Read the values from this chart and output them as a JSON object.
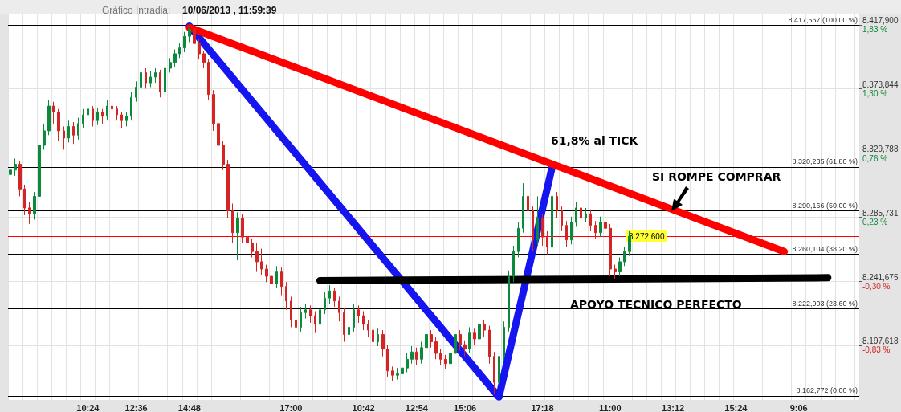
{
  "chart_data": {
    "type": "candlestick",
    "title": "Gráfico Intradia:",
    "subtitle": "10/06/2013 , 11:59:39",
    "categories": [
      null,
      null,
      null,
      null,
      null,
      null,
      null,
      null,
      null,
      null,
      null,
      null,
      null,
      null,
      null,
      null,
      "10:24",
      null,
      null,
      null,
      null,
      null,
      null,
      null,
      null,
      null,
      "12:36",
      null,
      null,
      null,
      null,
      null,
      null,
      null,
      null,
      null,
      null,
      "14:48",
      null,
      null,
      null,
      null,
      null,
      null,
      null,
      null,
      null,
      null,
      null,
      null,
      null,
      null,
      null,
      null,
      null,
      null,
      null,
      null,
      "17:00",
      null,
      null,
      null,
      null,
      null,
      null,
      null,
      null,
      null,
      null,
      null,
      null,
      null,
      null,
      "10:42",
      null,
      null,
      null,
      null,
      null,
      null,
      null,
      null,
      null,
      null,
      "12:54",
      null,
      null,
      null,
      null,
      null,
      null,
      null,
      null,
      null,
      "15:06",
      null,
      null,
      null,
      null,
      null,
      null,
      null,
      null,
      null,
      null,
      null,
      null,
      null,
      null,
      null,
      "17:18",
      null,
      null,
      null,
      null,
      null,
      null,
      null,
      null,
      null,
      null,
      null,
      null,
      null,
      "11:00",
      null,
      null,
      null,
      null,
      null,
      null,
      null,
      null,
      null,
      null,
      null,
      null,
      "13:12",
      null,
      null,
      null,
      null,
      null,
      null,
      null,
      null,
      null,
      null,
      null,
      null,
      "15:24",
      null,
      null,
      null,
      null,
      null,
      null,
      null,
      null,
      null,
      null,
      null,
      null,
      "9:06",
      null,
      null,
      null,
      null,
      null,
      null,
      null,
      null,
      null,
      null,
      null,
      null
    ],
    "series": [
      {
        "ohlc": [
          [
            8315,
            8322,
            8308,
            8318
          ],
          [
            8318,
            8326,
            8314,
            8322
          ],
          [
            8322,
            8324,
            8300,
            8305
          ],
          [
            8305,
            8308,
            8287,
            8292
          ],
          [
            8292,
            8296,
            8281,
            8288
          ],
          [
            8288,
            8303,
            8284,
            8300
          ],
          [
            8300,
            8340,
            8298,
            8335
          ],
          [
            8335,
            8350,
            8332,
            8345
          ],
          [
            8345,
            8366,
            8342,
            8362
          ],
          [
            8362,
            8365,
            8350,
            8358
          ],
          [
            8358,
            8360,
            8338,
            8345
          ],
          [
            8345,
            8348,
            8332,
            8340
          ],
          [
            8340,
            8352,
            8337,
            8348
          ],
          [
            8348,
            8351,
            8336,
            8342
          ],
          [
            8342,
            8354,
            8339,
            8350
          ],
          [
            8350,
            8360,
            8347,
            8356
          ],
          [
            8356,
            8366,
            8353,
            8360
          ],
          [
            8360,
            8362,
            8348,
            8352
          ],
          [
            8352,
            8361,
            8349,
            8358
          ],
          [
            8358,
            8360,
            8350,
            8355
          ],
          [
            8355,
            8366,
            8352,
            8362
          ],
          [
            8362,
            8364,
            8356,
            8360
          ],
          [
            8360,
            8362,
            8352,
            8356
          ],
          [
            8356,
            8358,
            8347,
            8352
          ],
          [
            8352,
            8358,
            8348,
            8355
          ],
          [
            8355,
            8372,
            8352,
            8368
          ],
          [
            8368,
            8379,
            8365,
            8375
          ],
          [
            8375,
            8390,
            8372,
            8385
          ],
          [
            8385,
            8388,
            8374,
            8378
          ],
          [
            8378,
            8386,
            8375,
            8382
          ],
          [
            8382,
            8388,
            8378,
            8385
          ],
          [
            8385,
            8387,
            8368,
            8372
          ],
          [
            8372,
            8391,
            8370,
            8388
          ],
          [
            8388,
            8395,
            8385,
            8392
          ],
          [
            8392,
            8401,
            8389,
            8398
          ],
          [
            8398,
            8405,
            8395,
            8402
          ],
          [
            8402,
            8413,
            8399,
            8410
          ],
          [
            8410,
            8417.5,
            8406,
            8415
          ],
          [
            8415,
            8416,
            8402,
            8405
          ],
          [
            8405,
            8408,
            8394,
            8398
          ],
          [
            8398,
            8400,
            8388,
            8392
          ],
          [
            8392,
            8394,
            8366,
            8370
          ],
          [
            8370,
            8373,
            8345,
            8350
          ],
          [
            8350,
            8353,
            8330,
            8335
          ],
          [
            8335,
            8338,
            8318,
            8322
          ],
          [
            8322,
            8325,
            8285,
            8290
          ],
          [
            8290,
            8295,
            8268,
            8275
          ],
          [
            8275,
            8289,
            8256,
            8285
          ],
          [
            8285,
            8288,
            8268,
            8272
          ],
          [
            8272,
            8282,
            8264,
            8268
          ],
          [
            8268,
            8271,
            8258,
            8262
          ],
          [
            8262,
            8268,
            8248,
            8255
          ],
          [
            8255,
            8264,
            8246,
            8250
          ],
          [
            8250,
            8253,
            8241,
            8245
          ],
          [
            8245,
            8248,
            8235,
            8240
          ],
          [
            8240,
            8252,
            8237,
            8248
          ],
          [
            8248,
            8251,
            8232,
            8238
          ],
          [
            8238,
            8241,
            8222,
            8228
          ],
          [
            8228,
            8231,
            8210,
            8215
          ],
          [
            8215,
            8218,
            8206,
            8210
          ],
          [
            8210,
            8224,
            8207,
            8220
          ],
          [
            8220,
            8226,
            8216,
            8222
          ],
          [
            8222,
            8225,
            8213,
            8218
          ],
          [
            8218,
            8221,
            8206,
            8212
          ],
          [
            8212,
            8226,
            8209,
            8222
          ],
          [
            8222,
            8234,
            8219,
            8230
          ],
          [
            8230,
            8239,
            8226,
            8235
          ],
          [
            8235,
            8237,
            8224,
            8228
          ],
          [
            8228,
            8231,
            8214,
            8220
          ],
          [
            8220,
            8223,
            8200,
            8205
          ],
          [
            8205,
            8214,
            8202,
            8210
          ],
          [
            8210,
            8226,
            8207,
            8222
          ],
          [
            8222,
            8225,
            8213,
            8218
          ],
          [
            8218,
            8221,
            8208,
            8212
          ],
          [
            8212,
            8215,
            8203,
            8208
          ],
          [
            8208,
            8211,
            8195,
            8200
          ],
          [
            8200,
            8209,
            8197,
            8205
          ],
          [
            8205,
            8208,
            8190,
            8195
          ],
          [
            8195,
            8198,
            8176,
            8180
          ],
          [
            8180,
            8183,
            8173,
            8177
          ],
          [
            8177,
            8182,
            8174,
            8178
          ],
          [
            8178,
            8186,
            8175,
            8182
          ],
          [
            8182,
            8192,
            8179,
            8188
          ],
          [
            8188,
            8197,
            8185,
            8193
          ],
          [
            8193,
            8196,
            8184,
            8188
          ],
          [
            8188,
            8200,
            8185,
            8196
          ],
          [
            8196,
            8210,
            8193,
            8205
          ],
          [
            8205,
            8208,
            8196,
            8200
          ],
          [
            8200,
            8203,
            8188,
            8192
          ],
          [
            8192,
            8195,
            8184,
            8188
          ],
          [
            8188,
            8191,
            8181,
            8185
          ],
          [
            8185,
            8196,
            8182,
            8192
          ],
          [
            8192,
            8236,
            8189,
            8205
          ],
          [
            8205,
            8208,
            8194,
            8198
          ],
          [
            8198,
            8201,
            8190,
            8195
          ],
          [
            8195,
            8210,
            8192,
            8206
          ],
          [
            8206,
            8209,
            8198,
            8202
          ],
          [
            8202,
            8218,
            8199,
            8212
          ],
          [
            8212,
            8215,
            8203,
            8208
          ],
          [
            8208,
            8211,
            8185,
            8190
          ],
          [
            8190,
            8193,
            8164,
            8172
          ],
          [
            8172,
            8194,
            8169,
            8190
          ],
          [
            8190,
            8214,
            8187,
            8210
          ],
          [
            8210,
            8249,
            8207,
            8245
          ],
          [
            8245,
            8266,
            8241,
            8262
          ],
          [
            8262,
            8282,
            8258,
            8278
          ],
          [
            8278,
            8309,
            8275,
            8300
          ],
          [
            8300,
            8306,
            8285,
            8290
          ],
          [
            8290,
            8293,
            8262,
            8270
          ],
          [
            8270,
            8300,
            8266,
            8285
          ],
          [
            8285,
            8288,
            8266,
            8272
          ],
          [
            8272,
            8276,
            8260,
            8265
          ],
          [
            8265,
            8305,
            8262,
            8300
          ],
          [
            8300,
            8303,
            8285,
            8290
          ],
          [
            8290,
            8293,
            8276,
            8280
          ],
          [
            8280,
            8283,
            8265,
            8270
          ],
          [
            8270,
            8286,
            8267,
            8282
          ],
          [
            8282,
            8296,
            8279,
            8292
          ],
          [
            8292,
            8295,
            8281,
            8285
          ],
          [
            8285,
            8292,
            8282,
            8288
          ],
          [
            8288,
            8291,
            8276,
            8280
          ],
          [
            8280,
            8283,
            8271,
            8275
          ],
          [
            8275,
            8286,
            8272,
            8282
          ],
          [
            8282,
            8285,
            8273,
            8278
          ],
          [
            8278,
            8281,
            8245,
            8250
          ],
          [
            8250,
            8253,
            8243,
            8248
          ],
          [
            8248,
            8258,
            8245,
            8255
          ],
          [
            8255,
            8265,
            8252,
            8262
          ],
          [
            8262,
            8276,
            8259,
            8272.6
          ],
          null,
          null,
          null,
          null,
          null,
          null,
          null,
          null,
          null,
          null,
          null,
          null,
          null,
          null,
          null,
          null,
          null,
          null,
          null,
          null,
          null,
          null,
          null,
          null,
          null,
          null,
          null,
          null,
          null,
          null,
          null,
          null,
          null,
          null,
          null,
          null,
          null,
          null,
          null,
          null,
          null,
          null,
          null,
          null,
          null,
          null,
          null
        ],
        "colors": [
          "#0b8a3c",
          "#0b8a3c",
          "#d42424",
          "#d42424",
          "#d42424",
          "#0b8a3c",
          "#0b8a3c",
          "#0b8a3c",
          "#0b8a3c",
          "#d42424",
          "#d42424",
          "#d42424",
          "#0b8a3c",
          "#d42424",
          "#0b8a3c",
          "#0b8a3c",
          "#0b8a3c",
          "#d42424",
          "#0b8a3c",
          "#d42424",
          "#0b8a3c",
          "#d42424",
          "#d42424",
          "#d42424",
          "#0b8a3c",
          "#0b8a3c",
          "#0b8a3c",
          "#0b8a3c",
          "#d42424",
          "#0b8a3c",
          "#0b8a3c",
          "#d42424",
          "#0b8a3c",
          "#0b8a3c",
          "#0b8a3c",
          "#0b8a3c",
          "#0b8a3c",
          "#0b8a3c",
          "#d42424",
          "#d42424",
          "#d42424",
          "#d42424",
          "#d42424",
          "#d42424",
          "#d42424",
          "#d42424",
          "#d42424",
          "#0b8a3c",
          "#d42424",
          "#d42424",
          "#d42424",
          "#d42424",
          "#d42424",
          "#d42424",
          "#d42424",
          "#0b8a3c",
          "#d42424",
          "#d42424",
          "#d42424",
          "#d42424",
          "#0b8a3c",
          "#0b8a3c",
          "#d42424",
          "#d42424",
          "#0b8a3c",
          "#0b8a3c",
          "#0b8a3c",
          "#d42424",
          "#d42424",
          "#d42424",
          "#0b8a3c",
          "#0b8a3c",
          "#d42424",
          "#d42424",
          "#d42424",
          "#d42424",
          "#0b8a3c",
          "#d42424",
          "#d42424",
          "#d42424",
          "#0b8a3c",
          "#0b8a3c",
          "#0b8a3c",
          "#0b8a3c",
          "#d42424",
          "#0b8a3c",
          "#0b8a3c",
          "#d42424",
          "#d42424",
          "#d42424",
          "#d42424",
          "#0b8a3c",
          "#0b8a3c",
          "#d42424",
          "#d42424",
          "#0b8a3c",
          "#d42424",
          "#0b8a3c",
          "#d42424",
          "#d42424",
          "#d42424",
          "#0b8a3c",
          "#0b8a3c",
          "#0b8a3c",
          "#0b8a3c",
          "#0b8a3c",
          "#0b8a3c",
          "#d42424",
          "#d42424",
          "#0b8a3c",
          "#d42424",
          "#d42424",
          "#0b8a3c",
          "#d42424",
          "#d42424",
          "#d42424",
          "#0b8a3c",
          "#0b8a3c",
          "#d42424",
          "#0b8a3c",
          "#d42424",
          "#d42424",
          "#0b8a3c",
          "#d42424",
          "#d42424",
          "#d42424",
          "#0b8a3c",
          "#0b8a3c",
          "#0b8a3c",
          null,
          null,
          null,
          null,
          null,
          null,
          null,
          null,
          null,
          null,
          null,
          null,
          null,
          null,
          null,
          null,
          null,
          null,
          null,
          null,
          null,
          null,
          null,
          null,
          null,
          null,
          null,
          null,
          null,
          null,
          null,
          null,
          null,
          null,
          null,
          null,
          null,
          null,
          null,
          null,
          null,
          null,
          null,
          null,
          null,
          null,
          null
        ]
      },
      {
        "type": "line",
        "color": "#1515f0",
        "values": [
          null,
          null,
          null,
          null,
          null,
          null,
          null,
          null,
          null,
          null,
          null,
          null,
          null,
          null,
          null,
          null,
          null,
          null,
          null,
          null,
          null,
          null,
          null,
          null,
          null,
          null,
          null,
          null,
          null,
          null,
          null,
          null,
          null,
          null,
          null,
          null,
          null,
          8417,
          null,
          null,
          null,
          null,
          null,
          null,
          null,
          null,
          null,
          null,
          null,
          null,
          null,
          null,
          null,
          null,
          null,
          null,
          null,
          null,
          null,
          null,
          null,
          null,
          null,
          null,
          null,
          null,
          null,
          null,
          null,
          null,
          null,
          null,
          null,
          null,
          null,
          null,
          null,
          null,
          null,
          null,
          null,
          null,
          null,
          null,
          null,
          null,
          null,
          null,
          null,
          null,
          null,
          null,
          null,
          null,
          null,
          null,
          null,
          null,
          null,
          null,
          null,
          8162,
          null,
          null,
          null,
          null,
          null,
          null,
          null,
          null,
          null,
          null,
          8320,
          null,
          null,
          null,
          null,
          null,
          null,
          null,
          null,
          null,
          null,
          null,
          null,
          null,
          null,
          null,
          null,
          null,
          null,
          null,
          null,
          null,
          null,
          null,
          null,
          null,
          null,
          null,
          null,
          null,
          null,
          null,
          null,
          null,
          null,
          null,
          null,
          null,
          null,
          null,
          null,
          null,
          null,
          null,
          null,
          null,
          null,
          null,
          null,
          null,
          null,
          null,
          null,
          null,
          null,
          null,
          null,
          null,
          null,
          null,
          null,
          null,
          null,
          null
        ]
      },
      {
        "type": "line",
        "color": "#ff0000",
        "values": [
          null,
          null,
          null,
          null,
          null,
          null,
          null,
          null,
          null,
          null,
          null,
          null,
          null,
          null,
          null,
          null,
          null,
          null,
          null,
          null,
          null,
          null,
          null,
          null,
          null,
          null,
          null,
          null,
          null,
          null,
          null,
          null,
          null,
          null,
          null,
          null,
          null,
          8416,
          null,
          null,
          null,
          null,
          null,
          null,
          null,
          null,
          null,
          null,
          null,
          null,
          null,
          null,
          null,
          null,
          null,
          null,
          null,
          null,
          null,
          null,
          null,
          null,
          null,
          null,
          null,
          null,
          null,
          null,
          null,
          null,
          null,
          null,
          null,
          null,
          null,
          null,
          null,
          null,
          null,
          null,
          null,
          null,
          null,
          null,
          null,
          null,
          null,
          null,
          null,
          null,
          null,
          null,
          null,
          null,
          null,
          null,
          null,
          null,
          null,
          null,
          null,
          null,
          null,
          null,
          null,
          null,
          null,
          null,
          null,
          null,
          null,
          null,
          null,
          null,
          null,
          null,
          null,
          null,
          null,
          null,
          null,
          null,
          null,
          null,
          null,
          null,
          null,
          null,
          null,
          null,
          null,
          null,
          null,
          null,
          null,
          null,
          null,
          null,
          null,
          null,
          null,
          null,
          null,
          null,
          null,
          null,
          null,
          null,
          null,
          null,
          null,
          null,
          null,
          null,
          null,
          null,
          null,
          null,
          null,
          null,
          8262,
          null,
          null,
          null,
          null,
          null,
          null,
          null,
          null,
          null,
          null,
          null,
          null,
          null,
          null,
          null
        ]
      },
      {
        "type": "line",
        "color": "#000000",
        "values": [
          null,
          null,
          null,
          null,
          null,
          null,
          null,
          null,
          null,
          null,
          null,
          null,
          null,
          null,
          null,
          null,
          null,
          null,
          null,
          null,
          null,
          null,
          null,
          null,
          null,
          null,
          null,
          null,
          null,
          null,
          null,
          null,
          null,
          null,
          null,
          null,
          null,
          null,
          null,
          null,
          null,
          null,
          null,
          null,
          null,
          null,
          null,
          null,
          null,
          null,
          null,
          null,
          null,
          null,
          null,
          null,
          null,
          null,
          null,
          null,
          null,
          null,
          null,
          null,
          8242,
          null,
          null,
          null,
          null,
          null,
          null,
          null,
          null,
          null,
          null,
          null,
          null,
          null,
          null,
          null,
          null,
          null,
          null,
          null,
          null,
          null,
          null,
          null,
          null,
          null,
          null,
          null,
          null,
          null,
          null,
          null,
          null,
          null,
          null,
          null,
          null,
          null,
          null,
          null,
          null,
          null,
          null,
          null,
          null,
          null,
          null,
          null,
          null,
          null,
          null,
          null,
          null,
          null,
          null,
          null,
          null,
          null,
          null,
          null,
          null,
          null,
          null,
          null,
          null,
          null,
          null,
          null,
          null,
          null,
          null,
          null,
          null,
          null,
          null,
          null,
          null,
          null,
          null,
          null,
          null,
          null,
          null,
          null,
          null,
          null,
          null,
          null,
          null,
          null,
          null,
          null,
          null,
          null,
          null,
          null,
          null,
          null,
          null,
          null,
          null,
          null,
          null,
          null,
          null,
          8244,
          null,
          null,
          null,
          null,
          null,
          null
        ]
      }
    ],
    "ylim": [
      8160,
      8425
    ],
    "yticks": [
      {
        "value": 8417.9,
        "label": "8.417,900"
      },
      {
        "value": 8373.844,
        "label": "8.373,844"
      },
      {
        "value": 8329.788,
        "label": "8.329,788"
      },
      {
        "value": 8285.731,
        "label": "8.285,731"
      },
      {
        "value": 8241.675,
        "label": "8.241,675"
      },
      {
        "value": 8197.618,
        "label": "8.197,618"
      }
    ],
    "y2lim": [
      -1.28,
      1.92
    ],
    "y2ticks": [
      {
        "value": 1.83,
        "label": "1,83 %"
      },
      {
        "value": 1.3,
        "label": "1,30 %"
      },
      {
        "value": 0.76,
        "label": "0,76 %"
      },
      {
        "value": 0.23,
        "label": "0,23 %"
      },
      {
        "value": -0.3,
        "label": "-0,30 %"
      },
      {
        "value": -0.83,
        "label": "-0,83 %"
      }
    ],
    "ref_lines": [
      {
        "axis": "y",
        "value": 8417.567,
        "label": "8.417,567 (100,00 %)",
        "color": "#000000"
      },
      {
        "axis": "y",
        "value": 8320.235,
        "label": "8.320,235 (61,80 %)",
        "color": "#000000"
      },
      {
        "axis": "y",
        "value": 8290.166,
        "label": "8.290,166 (50,00 %)",
        "color": "#000000"
      },
      {
        "axis": "y",
        "value": 8260.104,
        "label": "8.260,104 (38,20 %)",
        "color": "#000000"
      },
      {
        "axis": "y",
        "value": 8222.903,
        "label": "8.222,903 (23,60 %)",
        "color": "#000000"
      },
      {
        "axis": "y",
        "value": 8162.772,
        "label": "8.162,772 (0,00 %)",
        "color": "#000000"
      },
      {
        "axis": "y",
        "value": 8272.6,
        "label": "8.272,600",
        "color": "#ff0000"
      }
    ],
    "annotations": [
      "61,8% al TICK",
      "SI ROMPE COMPRAR",
      "APOYO TECNICO PERFECTO"
    ],
    "grid": true,
    "marker": "none",
    "line_style": "solid"
  }
}
